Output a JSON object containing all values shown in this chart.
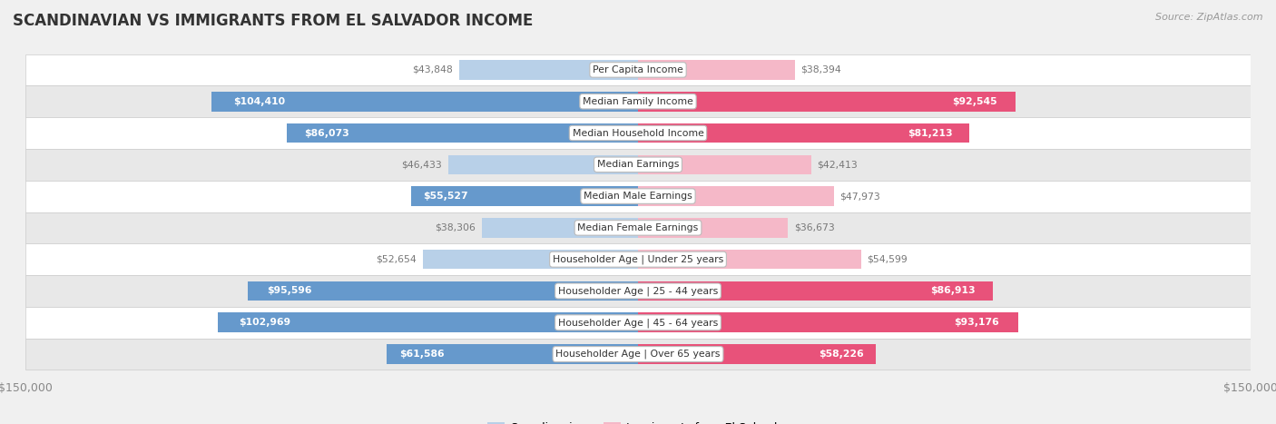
{
  "title": "SCANDINAVIAN VS IMMIGRANTS FROM EL SALVADOR INCOME",
  "source": "Source: ZipAtlas.com",
  "categories": [
    "Per Capita Income",
    "Median Family Income",
    "Median Household Income",
    "Median Earnings",
    "Median Male Earnings",
    "Median Female Earnings",
    "Householder Age | Under 25 years",
    "Householder Age | 25 - 44 years",
    "Householder Age | 45 - 64 years",
    "Householder Age | Over 65 years"
  ],
  "scandinavian_values": [
    43848,
    104410,
    86073,
    46433,
    55527,
    38306,
    52654,
    95596,
    102969,
    61586
  ],
  "elsalvador_values": [
    38394,
    92545,
    81213,
    42413,
    47973,
    36673,
    54599,
    86913,
    93176,
    58226
  ],
  "scandinavian_labels": [
    "$43,848",
    "$104,410",
    "$86,073",
    "$46,433",
    "$55,527",
    "$38,306",
    "$52,654",
    "$95,596",
    "$102,969",
    "$61,586"
  ],
  "elsalvador_labels": [
    "$38,394",
    "$92,545",
    "$81,213",
    "$42,413",
    "$47,973",
    "$36,673",
    "$54,599",
    "$86,913",
    "$93,176",
    "$58,226"
  ],
  "scandinavian_color_strong": "#6699cc",
  "scandinavian_color_light": "#b8d0e8",
  "elsalvador_color_strong": "#e8527a",
  "elsalvador_color_light": "#f5b8c8",
  "inside_label_color": "#ffffff",
  "outside_label_color": "#777777",
  "inside_threshold": 55000,
  "xlim": 150000,
  "background_color": "#f0f0f0",
  "row_even_color": "#ffffff",
  "row_odd_color": "#e8e8e8",
  "row_border_color": "#cccccc",
  "legend_scandinavian": "Scandinavian",
  "legend_elsalvador": "Immigrants from El Salvador",
  "x_tick_label": "$150,000"
}
